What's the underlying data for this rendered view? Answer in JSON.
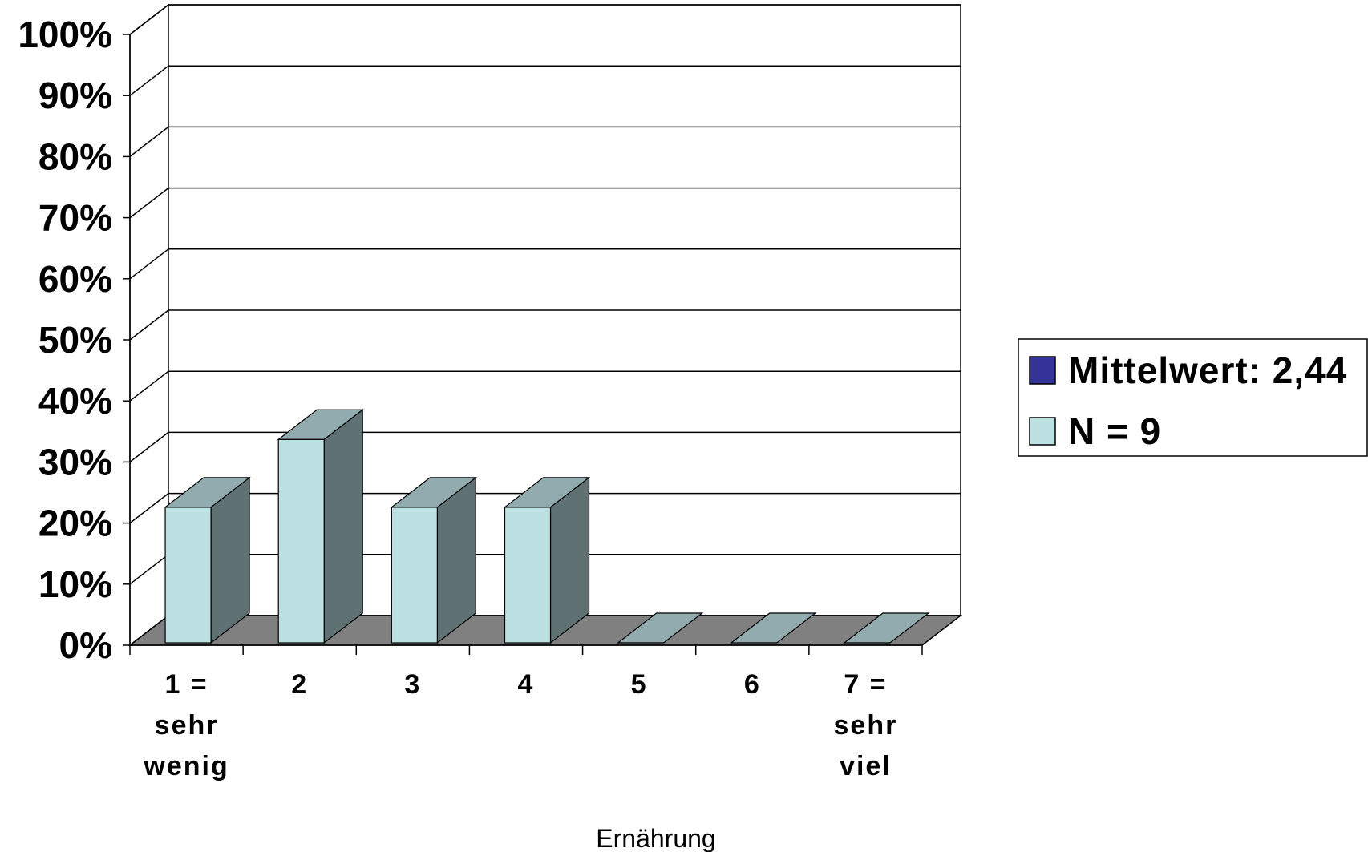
{
  "chart_data": {
    "type": "bar",
    "categories": [
      [
        "1 =",
        "sehr",
        "wenig"
      ],
      [
        "2"
      ],
      [
        "3"
      ],
      [
        "4"
      ],
      [
        "5"
      ],
      [
        "6"
      ],
      [
        "7 =",
        "sehr",
        "viel"
      ]
    ],
    "values": [
      22.2,
      33.3,
      22.2,
      22.2,
      0,
      0,
      0
    ],
    "xlabel": "Ernährung",
    "ylabel": "",
    "ylim": [
      0,
      100
    ],
    "yticks": [
      "0%",
      "10%",
      "20%",
      "30%",
      "40%",
      "50%",
      "60%",
      "70%",
      "80%",
      "90%",
      "100%"
    ],
    "grid": true,
    "three_d": true,
    "legend": {
      "placement": "right",
      "entries": [
        {
          "label": "Mittelwert: 2,44",
          "color": "#333399"
        },
        {
          "label": "N = 9",
          "color": "#bde0e3"
        }
      ]
    },
    "colors": {
      "bar_front": "#bde0e3",
      "bar_top": "#92abae",
      "bar_side": "#5f7173",
      "floor": "#808080"
    }
  }
}
